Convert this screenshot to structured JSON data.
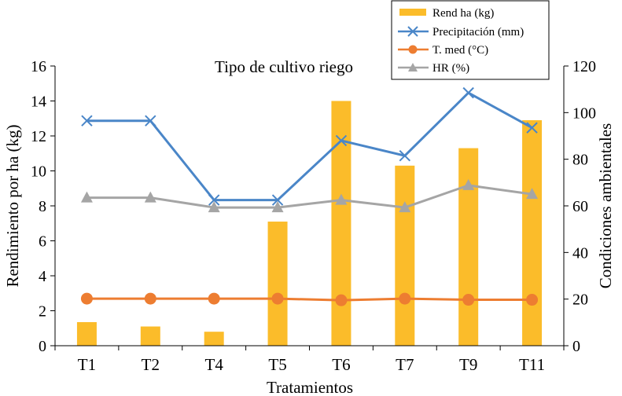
{
  "chart_data": {
    "type": "bar",
    "title": "Tipo de cultivo riego",
    "xlabel": "Tratamientos",
    "ylabel": "Rendimiento por ha (kg)",
    "y2label": "Condiciones ambientales",
    "categories": [
      "T1",
      "T2",
      "T4",
      "T5",
      "T6",
      "T7",
      "T9",
      "T11"
    ],
    "ylim": [
      0,
      16
    ],
    "yticks": [
      "0",
      "2",
      "4",
      "6",
      "8",
      "10",
      "12",
      "14",
      "16"
    ],
    "y2lim": [
      0,
      120
    ],
    "y2ticks": [
      "0",
      "20",
      "40",
      "60",
      "80",
      "100",
      "120"
    ],
    "grid": false,
    "legend_position": "top-right",
    "series": [
      {
        "name": "Rend ha (kg)",
        "type": "bar",
        "axis": "left",
        "color": "#FBBC2A",
        "values": [
          1.35,
          1.1,
          0.8,
          7.1,
          14.0,
          10.3,
          11.3,
          12.9
        ]
      },
      {
        "name": "Precipitación (mm)",
        "type": "line",
        "axis": "right",
        "marker": "x",
        "color": "#4A86C8",
        "values": [
          96.5,
          96.5,
          62.5,
          62.5,
          88,
          81.5,
          108.5,
          93.5
        ]
      },
      {
        "name": "T. med (°C)",
        "type": "line",
        "axis": "right",
        "marker": "circle",
        "color": "#ED7D31",
        "values": [
          20.2,
          20.2,
          20.2,
          20.2,
          19.5,
          20.2,
          19.7,
          19.7
        ]
      },
      {
        "name": "HR (%)",
        "type": "line",
        "axis": "right",
        "marker": "triangle",
        "color": "#A5A5A5",
        "values": [
          63.5,
          63.5,
          59.3,
          59.3,
          62.5,
          59.3,
          68.8,
          65
        ]
      }
    ]
  }
}
